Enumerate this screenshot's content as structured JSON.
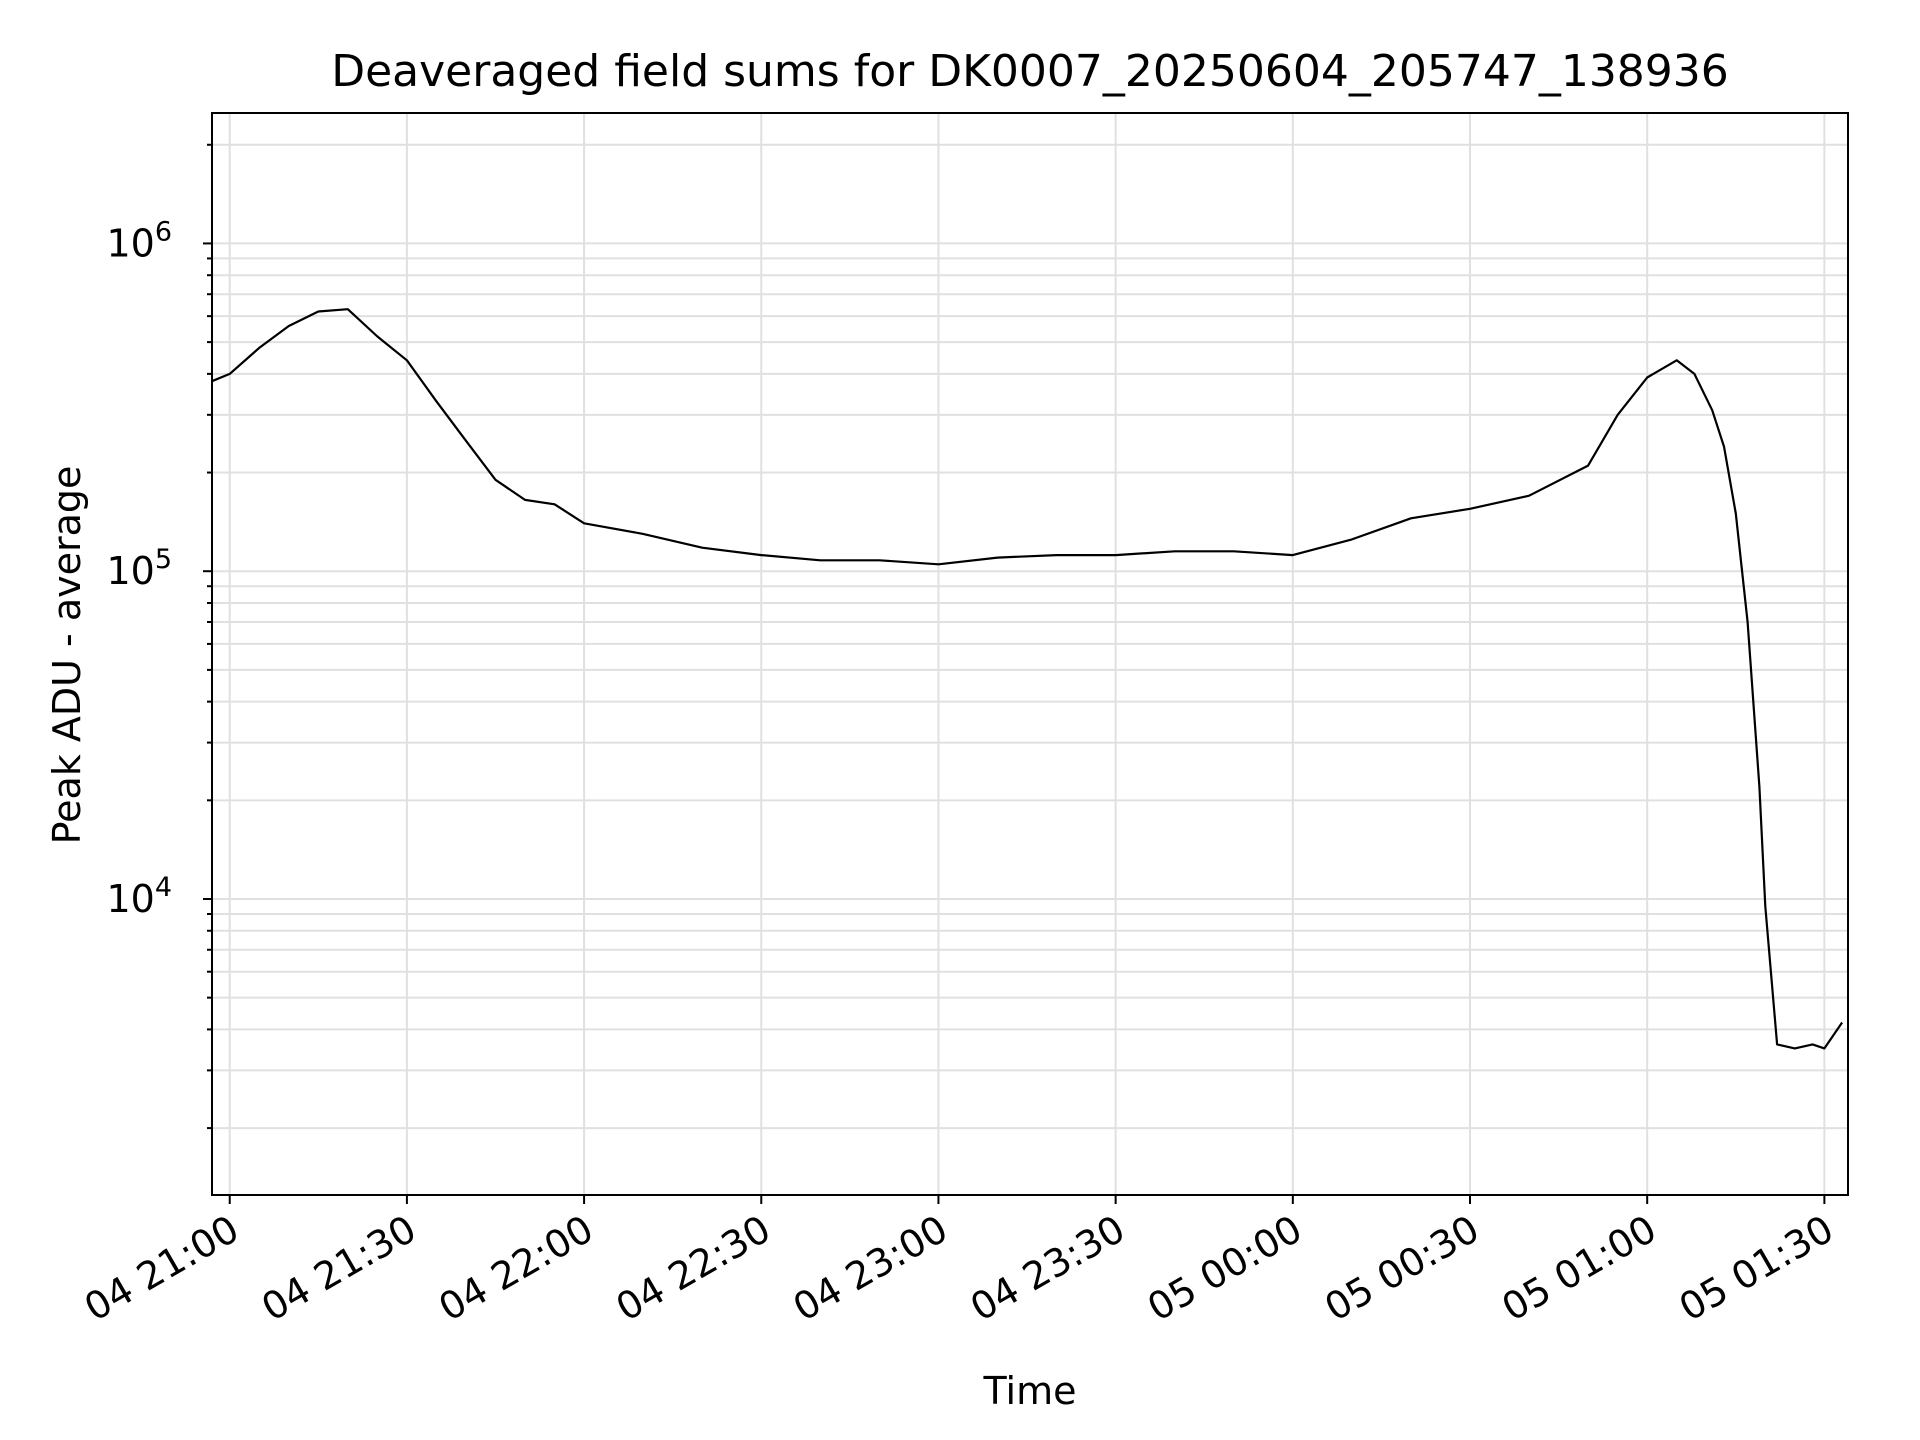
{
  "chart_data": {
    "type": "line",
    "title": "Deaveraged field sums for DK0007_20250604_205747_138936",
    "xlabel": "Time",
    "ylabel": "Peak ADU - average",
    "yscale": "log",
    "grid": true,
    "line_color": "#000000",
    "grid_color": "#e0e0e0",
    "xlim": [
      "2025-06-04 20:57:00",
      "2025-06-05 01:34:00"
    ],
    "ylim": [
      1250,
      2500000
    ],
    "x_ticks": [
      {
        "value": "2025-06-04 21:00",
        "label": "04 21:00"
      },
      {
        "value": "2025-06-04 21:30",
        "label": "04 21:30"
      },
      {
        "value": "2025-06-04 22:00",
        "label": "04 22:00"
      },
      {
        "value": "2025-06-04 22:30",
        "label": "04 22:30"
      },
      {
        "value": "2025-06-04 23:00",
        "label": "04 23:00"
      },
      {
        "value": "2025-06-04 23:30",
        "label": "04 23:30"
      },
      {
        "value": "2025-06-05 00:00",
        "label": "05 00:00"
      },
      {
        "value": "2025-06-05 00:30",
        "label": "05 00:30"
      },
      {
        "value": "2025-06-05 01:00",
        "label": "05 01:00"
      },
      {
        "value": "2025-06-05 01:30",
        "label": "05 01:30"
      }
    ],
    "y_ticks": [
      {
        "value": 10000,
        "base": "10",
        "exp": "4"
      },
      {
        "value": 100000,
        "base": "10",
        "exp": "5"
      },
      {
        "value": 1000000,
        "base": "10",
        "exp": "6"
      }
    ],
    "series": [
      {
        "x": [
          "2025-06-04 20:57",
          "2025-06-04 21:00",
          "2025-06-04 21:05",
          "2025-06-04 21:10",
          "2025-06-04 21:15",
          "2025-06-04 21:20",
          "2025-06-04 21:25",
          "2025-06-04 21:30",
          "2025-06-04 21:35",
          "2025-06-04 21:40",
          "2025-06-04 21:45",
          "2025-06-04 21:50",
          "2025-06-04 21:55",
          "2025-06-04 22:00",
          "2025-06-04 22:10",
          "2025-06-04 22:20",
          "2025-06-04 22:30",
          "2025-06-04 22:40",
          "2025-06-04 22:50",
          "2025-06-04 23:00",
          "2025-06-04 23:10",
          "2025-06-04 23:20",
          "2025-06-04 23:30",
          "2025-06-04 23:40",
          "2025-06-04 23:50",
          "2025-06-05 00:00",
          "2025-06-05 00:10",
          "2025-06-05 00:20",
          "2025-06-05 00:30",
          "2025-06-05 00:40",
          "2025-06-05 00:50",
          "2025-06-05 00:55",
          "2025-06-05 01:00",
          "2025-06-05 01:05",
          "2025-06-05 01:08",
          "2025-06-05 01:11",
          "2025-06-05 01:13",
          "2025-06-05 01:15",
          "2025-06-05 01:17",
          "2025-06-05 01:19",
          "2025-06-05 01:20",
          "2025-06-05 01:22",
          "2025-06-05 01:25",
          "2025-06-05 01:28",
          "2025-06-05 01:30",
          "2025-06-05 01:33"
        ],
        "y": [
          380000,
          400000,
          480000,
          560000,
          620000,
          630000,
          520000,
          440000,
          330000,
          250000,
          190000,
          165000,
          160000,
          140000,
          130000,
          118000,
          112000,
          108000,
          108000,
          105000,
          110000,
          112000,
          112000,
          115000,
          115000,
          112000,
          125000,
          145000,
          155000,
          170000,
          210000,
          300000,
          390000,
          440000,
          400000,
          310000,
          240000,
          150000,
          70000,
          22000,
          9500,
          3600,
          3500,
          3600,
          3500,
          4200
        ]
      }
    ]
  }
}
